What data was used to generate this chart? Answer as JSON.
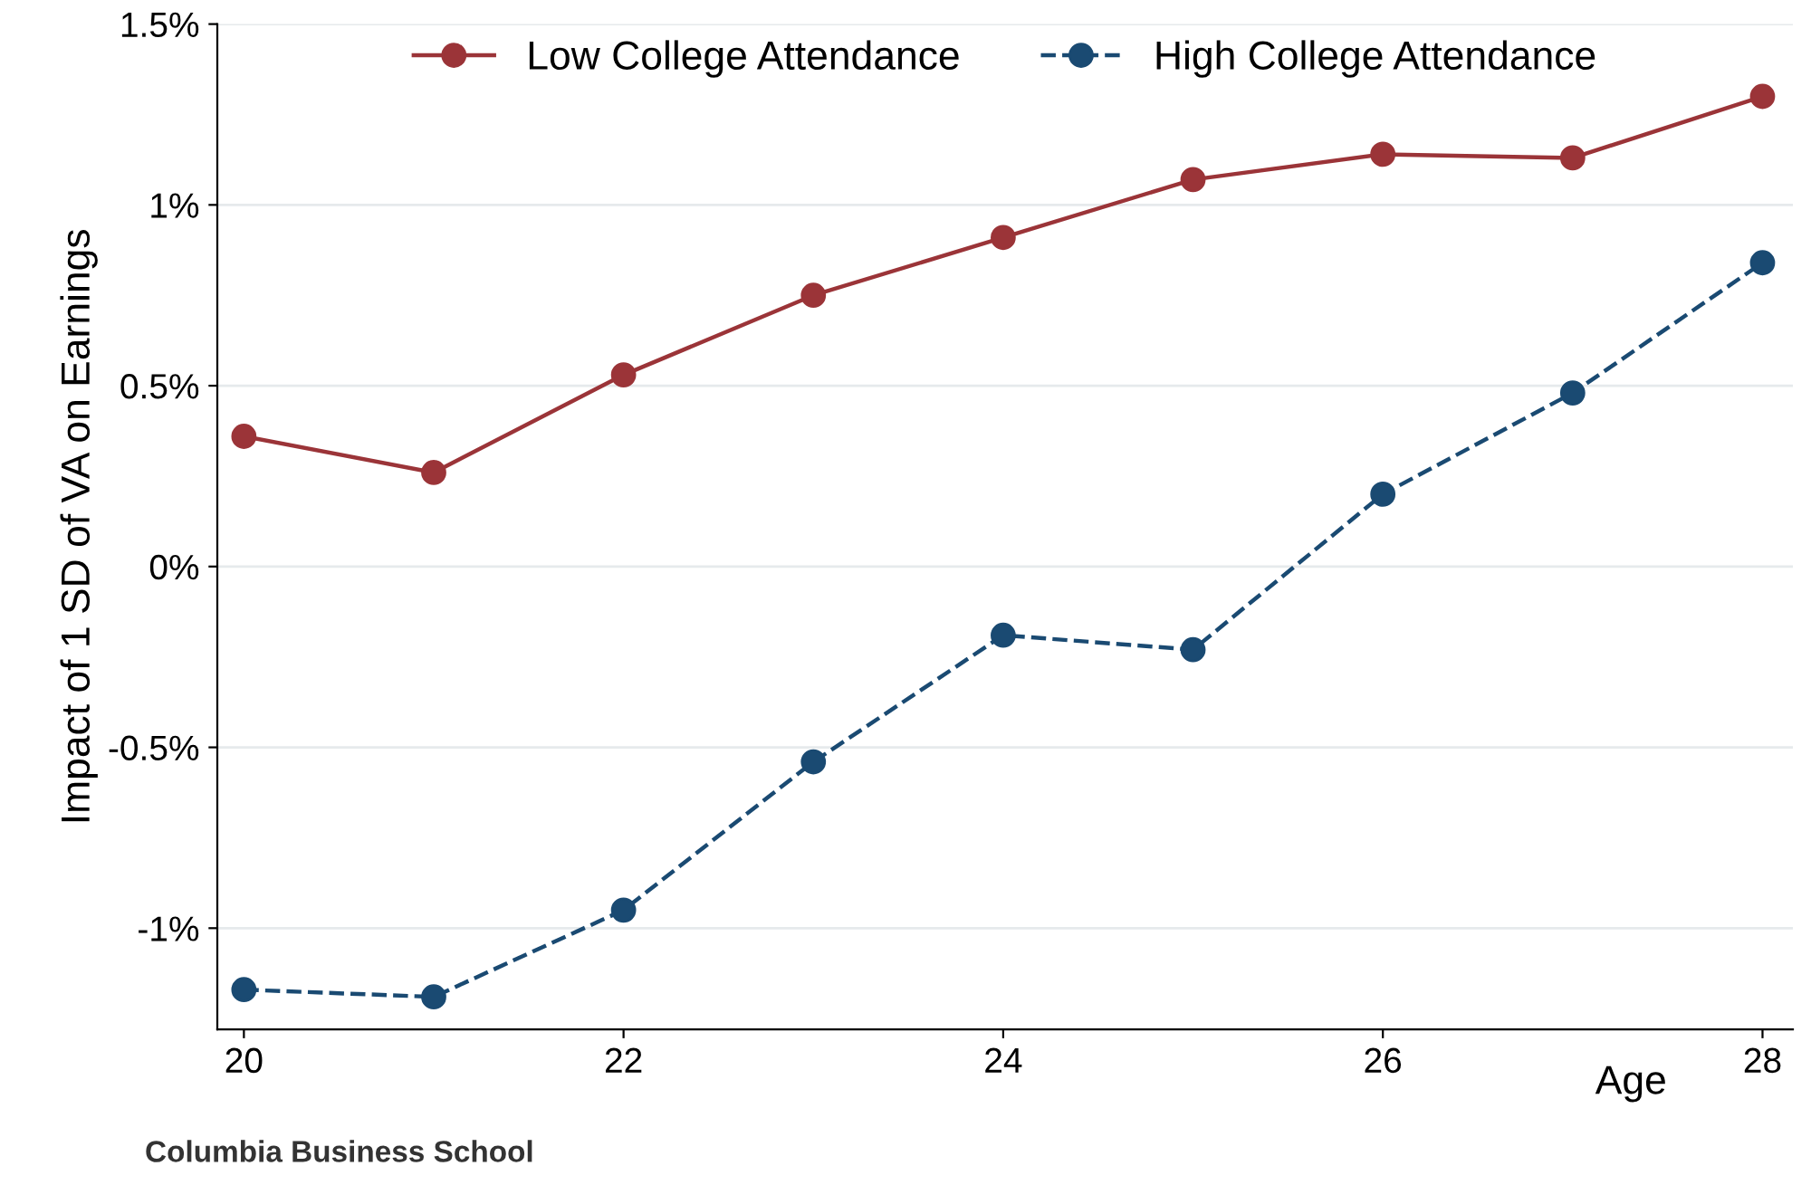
{
  "chart_data": {
    "type": "line",
    "xlabel": "Age",
    "ylabel": "Impact of 1 SD of VA on Earnings",
    "x": [
      20,
      21,
      22,
      23,
      24,
      25,
      26,
      27,
      28
    ],
    "series": [
      {
        "name": "Low College Attendance",
        "color": "#9b3438",
        "line_style": "solid",
        "values": [
          0.36,
          0.26,
          0.53,
          0.75,
          0.91,
          1.07,
          1.14,
          1.13,
          1.3
        ]
      },
      {
        "name": "High College Attendance",
        "color": "#1a4a72",
        "line_style": "dashed",
        "values": [
          -1.17,
          -1.19,
          -0.95,
          -0.54,
          -0.19,
          -0.23,
          0.2,
          0.48,
          0.84
        ]
      }
    ],
    "marker": "circle",
    "legend": "top",
    "grid": "y",
    "xlim": [
      19.86,
      28.16
    ],
    "xticks": [
      20,
      22,
      24,
      26,
      28
    ],
    "ylim": [
      -1.28,
      1.5
    ],
    "yticks": [
      {
        "value": -1,
        "label": "-1%"
      },
      {
        "value": -0.5,
        "label": "-0.5%"
      },
      {
        "value": 0,
        "label": "0%"
      },
      {
        "value": 0.5,
        "label": "0.5%"
      },
      {
        "value": 1,
        "label": "1%"
      },
      {
        "value": 1.5,
        "label": "1.5%"
      }
    ],
    "annotations": [
      "Columbia Business School"
    ]
  }
}
